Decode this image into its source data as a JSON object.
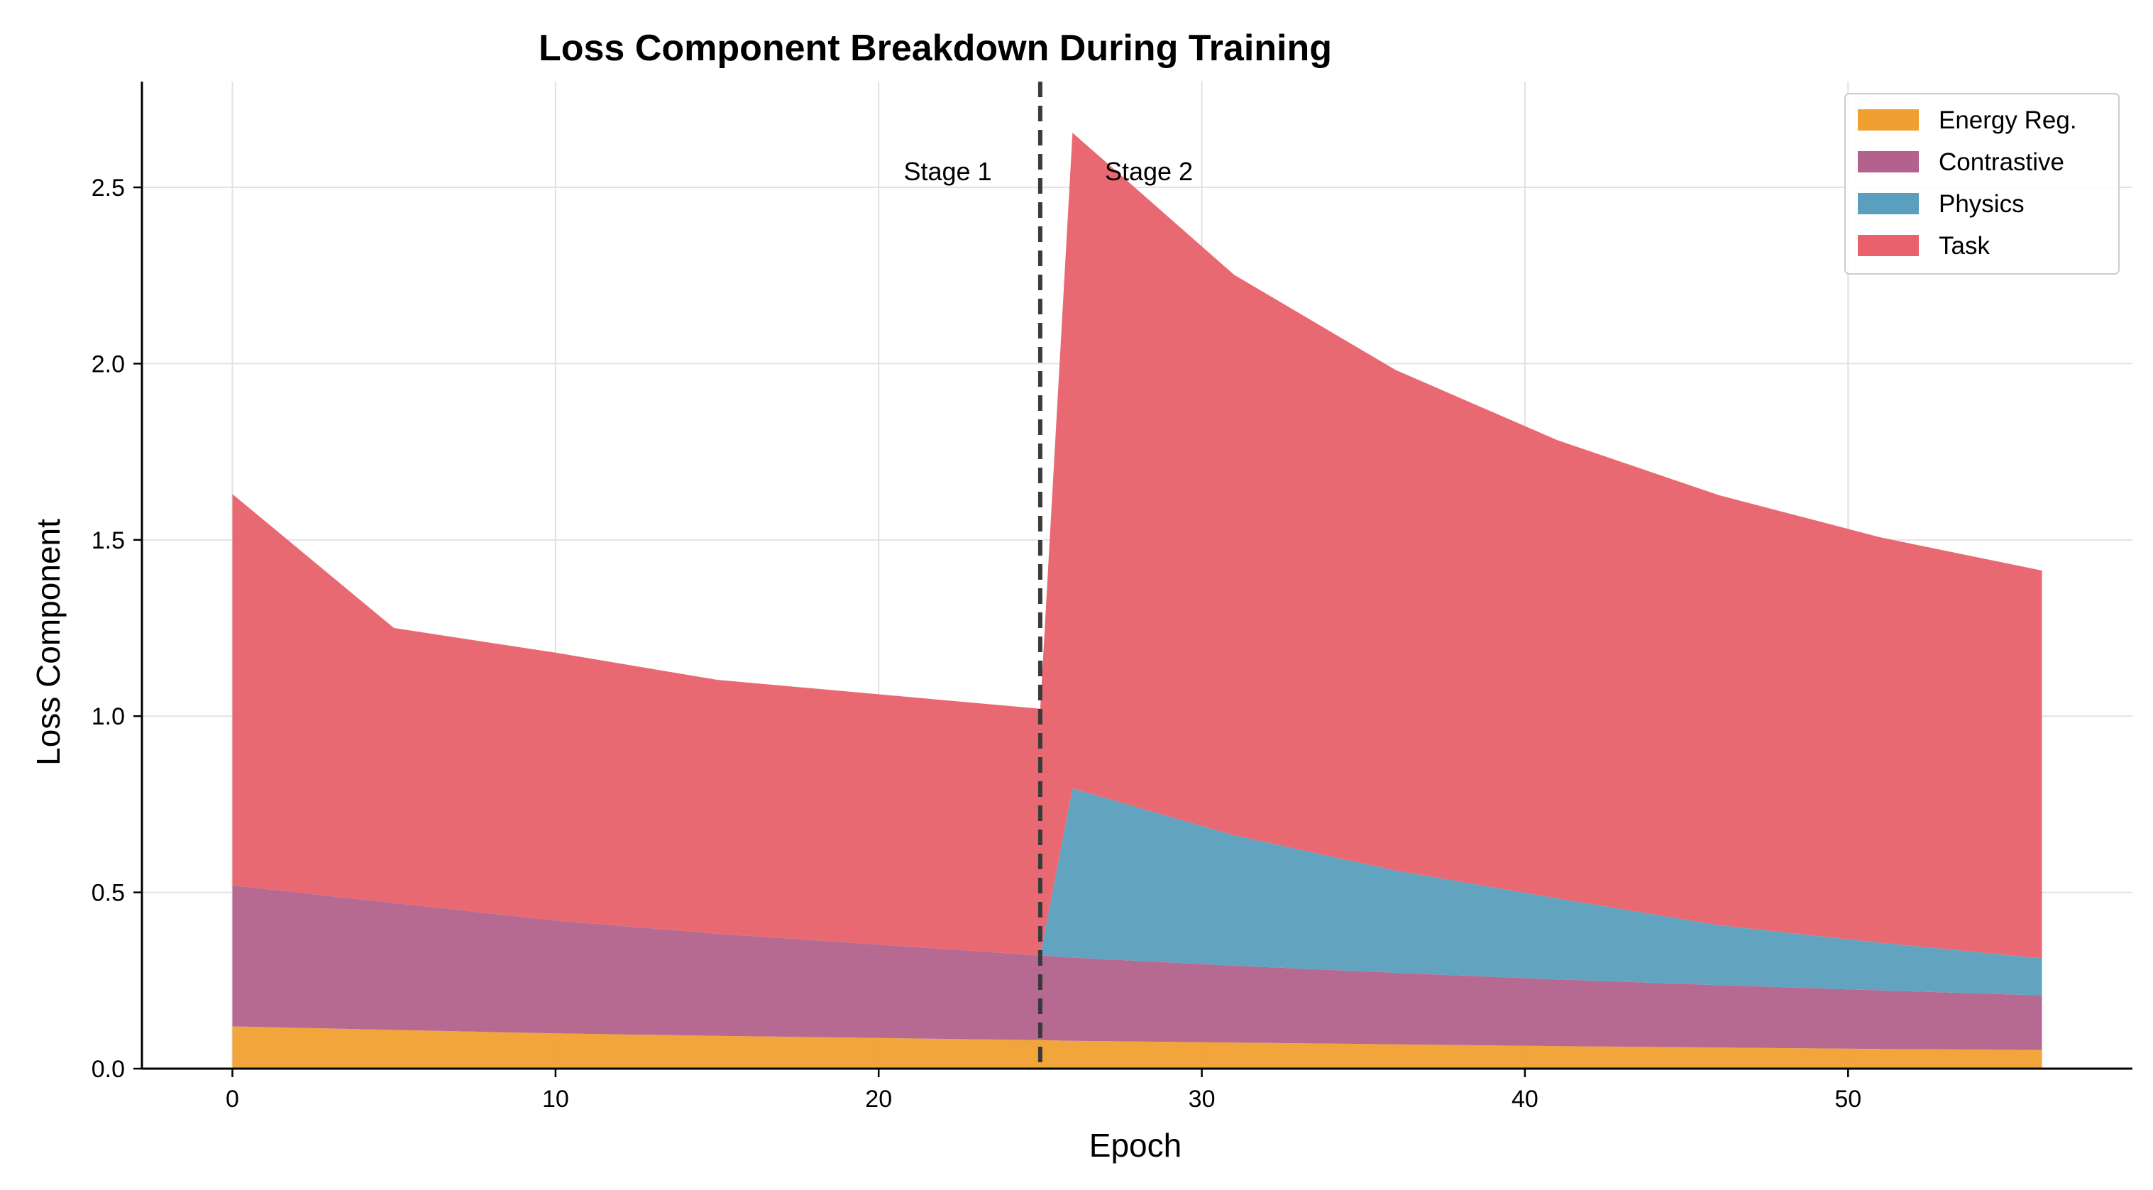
{
  "chart_data": {
    "type": "area",
    "stacked": true,
    "title": "Loss Component Breakdown During Training",
    "xlabel": "Epoch",
    "ylabel": "Loss Component",
    "xlim": [
      -2.8,
      58.8
    ],
    "ylim": [
      0,
      2.8
    ],
    "xticks": [
      0,
      10,
      20,
      30,
      40,
      50
    ],
    "xtick_labels": [
      "0",
      "10",
      "20",
      "30",
      "40",
      "50"
    ],
    "yticks": [
      0,
      0.5,
      1.0,
      1.5,
      2.0,
      2.5
    ],
    "ytick_labels": [
      "0.0",
      "0.5",
      "1.0",
      "1.5",
      "2.0",
      "2.5"
    ],
    "grid": true,
    "legend_position": "top-right",
    "x": [
      0,
      5,
      10,
      15,
      20,
      25,
      26,
      31,
      36,
      41,
      46,
      51,
      56
    ],
    "series": [
      {
        "name": "Energy Reg.",
        "color": "#f0a030",
        "values": [
          0.12,
          0.11,
          0.1,
          0.093,
          0.087,
          0.081,
          0.079,
          0.074,
          0.069,
          0.064,
          0.06,
          0.056,
          0.053
        ]
      },
      {
        "name": "Contrastive",
        "color": "#b2628c",
        "values": [
          0.4,
          0.36,
          0.32,
          0.29,
          0.265,
          0.24,
          0.236,
          0.218,
          0.203,
          0.189,
          0.177,
          0.166,
          0.155
        ]
      },
      {
        "name": "Physics",
        "color": "#5a9fbd",
        "values": [
          0,
          0,
          0,
          0,
          0,
          0,
          0.48,
          0.37,
          0.29,
          0.23,
          0.17,
          0.135,
          0.105
        ]
      },
      {
        "name": "Task",
        "color": "#e8616b",
        "values": [
          1.11,
          0.78,
          0.76,
          0.72,
          0.71,
          0.7,
          1.86,
          1.59,
          1.42,
          1.3,
          1.22,
          1.15,
          1.1
        ]
      }
    ],
    "vline": {
      "x": 25,
      "style": "dashed",
      "color": "#3a3a3a"
    },
    "annotations": [
      {
        "text": "Stage 1",
        "x": 23.5,
        "y": 2.52,
        "align": "right"
      },
      {
        "text": "Stage 2",
        "x": 27.0,
        "y": 2.52,
        "align": "left"
      }
    ]
  }
}
